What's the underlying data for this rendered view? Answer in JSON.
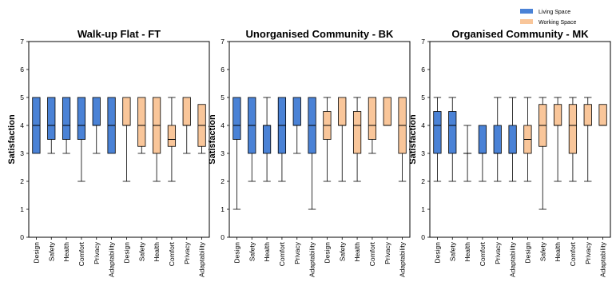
{
  "chart_data": {
    "type": "box",
    "ylabel": "Satisfaction",
    "ylim": [
      0,
      7
    ],
    "yticks": [
      "0",
      "1",
      "2",
      "3",
      "4",
      "5",
      "6",
      "7"
    ],
    "legend": {
      "placement": "top-right",
      "entries": [
        {
          "name": "Living Space",
          "color": "#4a82d6"
        },
        {
          "name": "Working Space",
          "color": "#f9c69a"
        }
      ]
    },
    "panels": [
      {
        "title": "Walk-up Flat - FT",
        "categories": [
          "Design",
          "Safety",
          "Health",
          "Comfort",
          "Privacy",
          "Adaptability",
          "Design",
          "Safety",
          "Health",
          "Comfort",
          "Privacy",
          "Adaptability"
        ],
        "groups": [
          "Living Space",
          "Living Space",
          "Living Space",
          "Living Space",
          "Living Space",
          "Living Space",
          "Working Space",
          "Working Space",
          "Working Space",
          "Working Space",
          "Working Space",
          "Working Space"
        ],
        "boxes": [
          {
            "min": 3,
            "q1": 3,
            "median": 4,
            "q3": 5,
            "max": 5
          },
          {
            "min": 3,
            "q1": 3.5,
            "median": 4,
            "q3": 5,
            "max": 5
          },
          {
            "min": 3,
            "q1": 3.5,
            "median": 4,
            "q3": 5,
            "max": 5
          },
          {
            "min": 2,
            "q1": 3.5,
            "median": 4,
            "q3": 5,
            "max": 5
          },
          {
            "min": 3,
            "q1": 4,
            "median": 4,
            "q3": 5,
            "max": 5
          },
          {
            "min": 3,
            "q1": 3,
            "median": 4,
            "q3": 5,
            "max": 5
          },
          {
            "min": 2,
            "q1": 4,
            "median": 4,
            "q3": 5,
            "max": 5
          },
          {
            "min": 3,
            "q1": 3.25,
            "median": 4,
            "q3": 5,
            "max": 5
          },
          {
            "min": 2,
            "q1": 3,
            "median": 4,
            "q3": 5,
            "max": 5
          },
          {
            "min": 2,
            "q1": 3.25,
            "median": 3.5,
            "q3": 4,
            "max": 5
          },
          {
            "min": 3,
            "q1": 4,
            "median": 4,
            "q3": 5,
            "max": 5
          },
          {
            "min": 3,
            "q1": 3.25,
            "median": 4,
            "q3": 4.75,
            "max": 4.75
          }
        ]
      },
      {
        "title": "Unorganised Community - BK",
        "categories": [
          "Design",
          "Safety",
          "Health",
          "Comfort",
          "Privacy",
          "Adaptability",
          "Design",
          "Safety",
          "Health",
          "Comfort",
          "Privacy",
          "Adaptability"
        ],
        "groups": [
          "Living Space",
          "Living Space",
          "Living Space",
          "Living Space",
          "Living Space",
          "Living Space",
          "Working Space",
          "Working Space",
          "Working Space",
          "Working Space",
          "Working Space",
          "Working Space"
        ],
        "boxes": [
          {
            "min": 1,
            "q1": 3.5,
            "median": 4,
            "q3": 5,
            "max": 5
          },
          {
            "min": 2,
            "q1": 3,
            "median": 4,
            "q3": 5,
            "max": 5
          },
          {
            "min": 2,
            "q1": 3,
            "median": 4,
            "q3": 4,
            "max": 5
          },
          {
            "min": 2,
            "q1": 3,
            "median": 4,
            "q3": 5,
            "max": 5
          },
          {
            "min": 3,
            "q1": 4,
            "median": 4,
            "q3": 5,
            "max": 5
          },
          {
            "min": 1,
            "q1": 3,
            "median": 4,
            "q3": 5,
            "max": 5
          },
          {
            "min": 2,
            "q1": 3.5,
            "median": 4,
            "q3": 4.5,
            "max": 5
          },
          {
            "min": 2,
            "q1": 4,
            "median": 4,
            "q3": 5,
            "max": 5
          },
          {
            "min": 2,
            "q1": 3,
            "median": 4,
            "q3": 4.5,
            "max": 5
          },
          {
            "min": 3,
            "q1": 3.5,
            "median": 4,
            "q3": 5,
            "max": 5
          },
          {
            "min": 4,
            "q1": 4,
            "median": 4,
            "q3": 5,
            "max": 5
          },
          {
            "min": 2,
            "q1": 3,
            "median": 4,
            "q3": 5,
            "max": 5
          }
        ]
      },
      {
        "title": "Organised Community - MK",
        "categories": [
          "Design",
          "Safety",
          "Health",
          "Comfort",
          "Privacy",
          "Adaptability",
          "Design",
          "Safety",
          "Health",
          "Comfort",
          "Privacy",
          "Adaptability"
        ],
        "groups": [
          "Living Space",
          "Living Space",
          "Living Space",
          "Living Space",
          "Living Space",
          "Living Space",
          "Working Space",
          "Working Space",
          "Working Space",
          "Working Space",
          "Working Space",
          "Working Space"
        ],
        "boxes": [
          {
            "min": 2,
            "q1": 3,
            "median": 4,
            "q3": 4.5,
            "max": 5
          },
          {
            "min": 2,
            "q1": 3,
            "median": 4,
            "q3": 4.5,
            "max": 5
          },
          {
            "min": 2,
            "q1": 3,
            "median": 3,
            "q3": 3,
            "max": 4
          },
          {
            "min": 2,
            "q1": 3,
            "median": 3,
            "q3": 4,
            "max": 4
          },
          {
            "min": 2,
            "q1": 3,
            "median": 3,
            "q3": 4,
            "max": 5
          },
          {
            "min": 2,
            "q1": 3,
            "median": 3,
            "q3": 4,
            "max": 5
          },
          {
            "min": 2,
            "q1": 3,
            "median": 3.5,
            "q3": 4,
            "max": 5
          },
          {
            "min": 1,
            "q1": 3.25,
            "median": 4,
            "q3": 4.75,
            "max": 5
          },
          {
            "min": 2,
            "q1": 4,
            "median": 4,
            "q3": 4.75,
            "max": 5
          },
          {
            "min": 2,
            "q1": 3,
            "median": 4,
            "q3": 4.75,
            "max": 5
          },
          {
            "min": 2,
            "q1": 4,
            "median": 4,
            "q3": 4.75,
            "max": 5
          },
          {
            "min": 4,
            "q1": 4,
            "median": 4,
            "q3": 4.75,
            "max": 4.75
          }
        ]
      }
    ]
  }
}
